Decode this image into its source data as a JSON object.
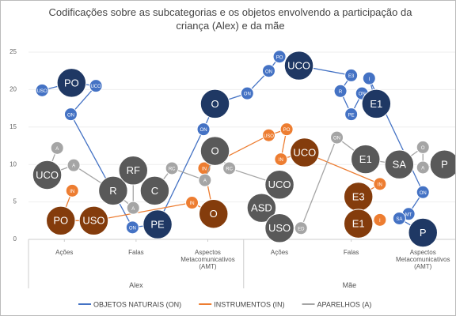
{
  "chart_data": {
    "type": "bubble",
    "title": "Codificações sobre as subcategorias e os objetos envolvendo a participação da criança (Alex) e da mãe",
    "xlim": [
      0.5,
      6.45
    ],
    "xticks": [
      {
        "value": 1,
        "label": "Ações"
      },
      {
        "value": 2,
        "label": "Falas"
      },
      {
        "value": 3,
        "label": "Aspectos Metacomunicativos (AMT)"
      },
      {
        "value": 4,
        "label": "Ações"
      },
      {
        "value": 5,
        "label": "Falas"
      },
      {
        "value": 6,
        "label": "Aspectos Metacomunicativos (AMT)"
      }
    ],
    "groups": [
      {
        "name": "Alex",
        "range": [
          0.5,
          3.5
        ]
      },
      {
        "name": "Mãe",
        "range": [
          3.5,
          6.45
        ]
      }
    ],
    "ylim": [
      0,
      25
    ],
    "yticks": [
      0,
      5,
      10,
      15,
      20,
      25
    ],
    "series": [
      {
        "name": "OBJETOS NATURAIS (ON)",
        "color": "#4472c4",
        "x": [
          0.69,
          1.1,
          1.44,
          1.09,
          1.95,
          2.3,
          2.94,
          3.1,
          3.55,
          3.85,
          4.0,
          4.27,
          5.0,
          4.85,
          5.0,
          5.15,
          5.35,
          5.25,
          6.0,
          5.8,
          5.67,
          6.0
        ],
        "values": [
          19.9,
          20.9,
          20.5,
          16.7,
          1.6,
          2.0,
          14.7,
          18.1,
          19.5,
          22.5,
          24.4,
          23.2,
          21.9,
          19.8,
          16.7,
          19.5,
          18.1,
          21.5,
          6.3,
          3.4,
          2.8,
          0.9
        ],
        "sizes": [
          1,
          3,
          1,
          1,
          1,
          3,
          1,
          3,
          1,
          1,
          1,
          3,
          1,
          1,
          1,
          1,
          3,
          1,
          1,
          1,
          1,
          3
        ],
        "labels": [
          "USO",
          "PO",
          "UCO",
          "ON",
          "ON",
          "PE",
          "ON",
          "O",
          "ON",
          "ON",
          "PO",
          "UCO",
          "E3",
          "R",
          "PE",
          "ON",
          "E1",
          "I",
          "ON",
          "MT",
          "SA",
          "P"
        ],
        "colors": [
          "#4472c4",
          "#1f3864",
          "#4472c4",
          "#4472c4",
          "#4472c4",
          "#1f3864",
          "#4472c4",
          "#1f3864",
          "#4472c4",
          "#4472c4",
          "#4472c4",
          "#1f3864",
          "#4472c4",
          "#4472c4",
          "#4472c4",
          "#4472c4",
          "#1f3864",
          "#4472c4",
          "#4472c4",
          "#4472c4",
          "#4472c4",
          "#1f3864"
        ]
      },
      {
        "name": "INSTRUMENTOS (IN)",
        "color": "#ed7d31",
        "x": [
          1.11,
          0.95,
          1.41,
          2.78,
          3.08,
          2.95,
          3.85,
          4.1,
          4.02,
          4.35,
          5.4,
          5.1,
          5.1,
          5.4
        ],
        "values": [
          6.5,
          2.5,
          2.5,
          4.9,
          3.4,
          9.5,
          13.9,
          14.7,
          10.7,
          11.6,
          7.4,
          5.7,
          2.1,
          2.6
        ],
        "sizes": [
          1,
          3,
          3,
          1,
          3,
          1,
          1,
          1,
          1,
          3,
          1,
          3,
          3,
          1
        ],
        "labels": [
          "IN",
          "PO",
          "USO",
          "IN",
          "O",
          "IN",
          "USO",
          "PO",
          "IN",
          "UCO",
          "IN",
          "E3",
          "E1",
          "I"
        ],
        "colors": [
          "#ed7d31",
          "#843c0c",
          "#843c0c",
          "#ed7d31",
          "#843c0c",
          "#ed7d31",
          "#ed7d31",
          "#ed7d31",
          "#ed7d31",
          "#843c0c",
          "#ed7d31",
          "#843c0c",
          "#843c0c",
          "#ed7d31"
        ]
      },
      {
        "name": "APARELHOS (A)",
        "color": "#a5a5a5",
        "x": [
          0.9,
          0.76,
          1.13,
          1.68,
          1.96,
          1.96,
          2.26,
          2.5,
          2.96,
          3.1,
          3.3,
          4.0,
          3.75,
          4.0,
          4.3,
          4.8,
          5.2,
          5.67,
          6.0,
          6.0,
          6.3
        ],
        "values": [
          12.2,
          8.6,
          9.9,
          6.5,
          4.2,
          9.2,
          6.5,
          9.5,
          7.9,
          11.8,
          9.5,
          7.3,
          4.2,
          1.5,
          1.5,
          13.6,
          10.7,
          10.0,
          12.3,
          9.6,
          10.0
        ],
        "sizes": [
          1,
          3,
          1,
          3,
          1,
          3,
          3,
          1,
          1,
          3,
          1,
          3,
          3,
          3,
          1,
          1,
          3,
          3,
          1,
          1,
          3
        ],
        "labels": [
          "A",
          "UCO",
          "A",
          "R",
          "A",
          "RF",
          "C",
          "RC",
          "A",
          "O",
          "RC",
          "UCO",
          "ASD",
          "USO",
          "ED",
          "ON",
          "E1",
          "SA",
          "O",
          "A",
          "P"
        ],
        "colors": [
          "#a5a5a5",
          "#595959",
          "#a5a5a5",
          "#595959",
          "#a5a5a5",
          "#595959",
          "#595959",
          "#a5a5a5",
          "#a5a5a5",
          "#595959",
          "#a5a5a5",
          "#595959",
          "#595959",
          "#595959",
          "#a5a5a5",
          "#a5a5a5",
          "#595959",
          "#595959",
          "#a5a5a5",
          "#a5a5a5",
          "#595959"
        ]
      }
    ]
  }
}
